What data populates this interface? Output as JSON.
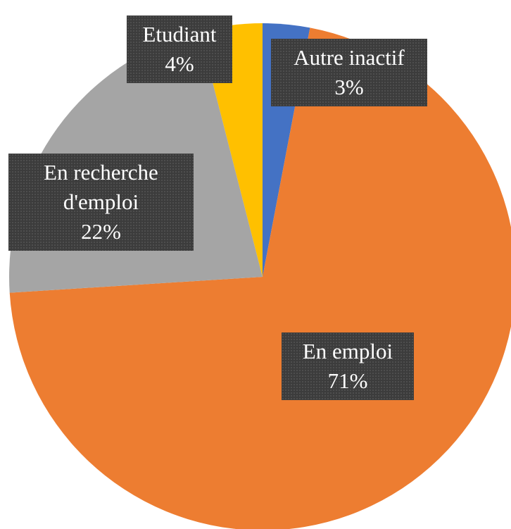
{
  "chart_data": {
    "type": "pie",
    "categories": [
      "Autre inactif",
      "En emploi",
      "En recherche d'emploi",
      "Etudiant"
    ],
    "values": [
      3,
      71,
      22,
      4
    ],
    "value_labels": [
      "3%",
      "71%",
      "22%",
      "4%"
    ],
    "colors": [
      "#4472c4",
      "#ed7d31",
      "#a5a5a5",
      "#ffc000"
    ]
  }
}
